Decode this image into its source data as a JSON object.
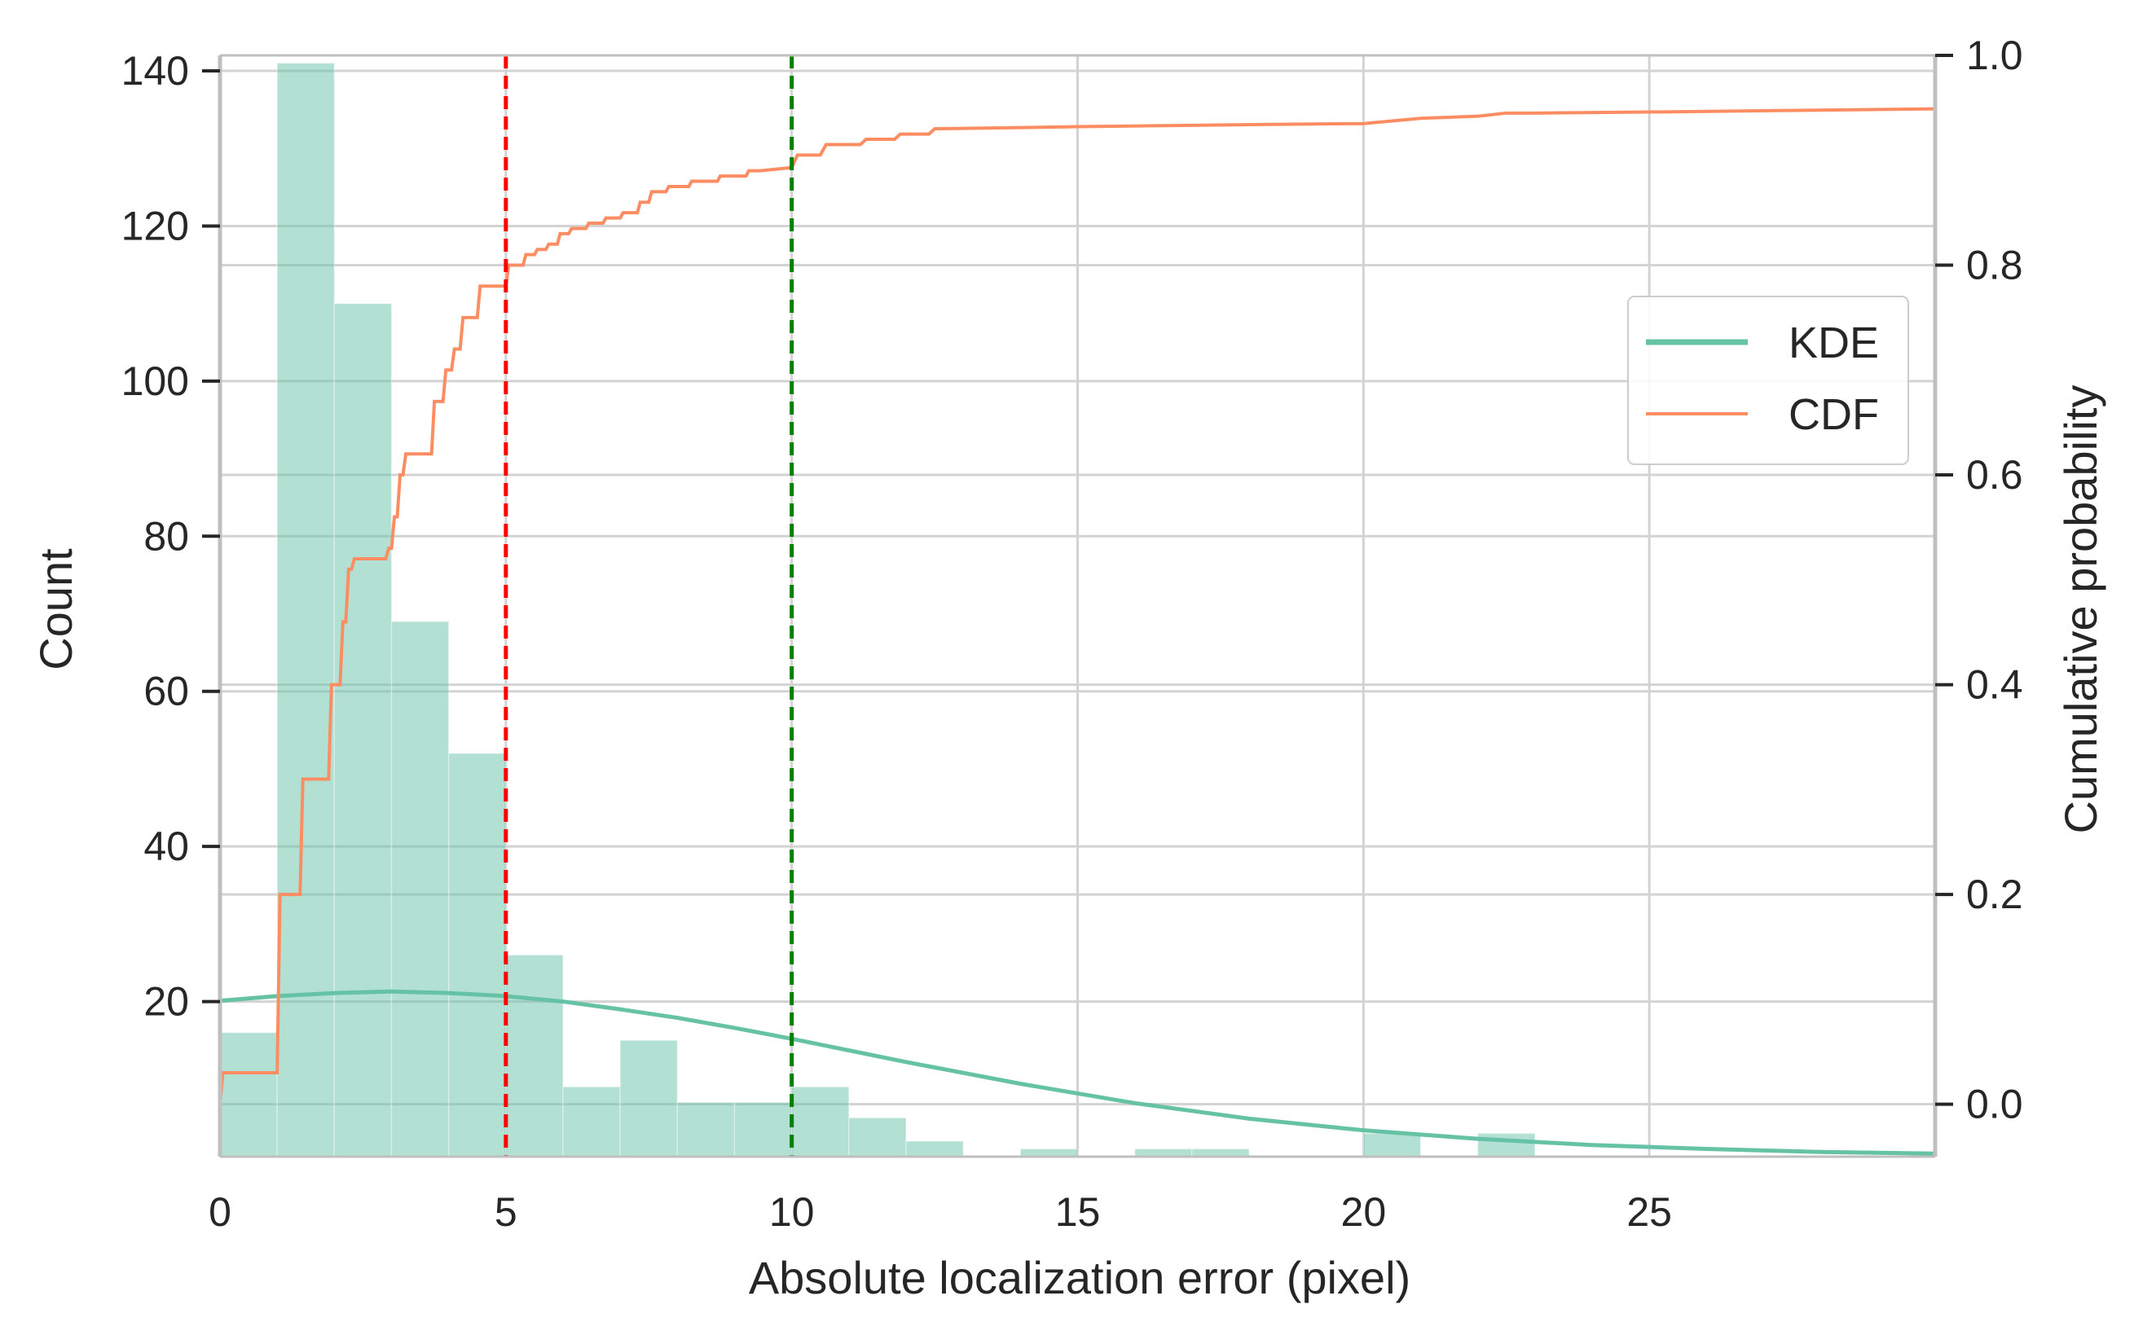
{
  "chart_data": {
    "type": "bar",
    "xlabel": "Absolute localization error (pixel)",
    "ylabel": "Count",
    "y2label": "Cumulative probability",
    "xlim": [
      0,
      30
    ],
    "ylim": [
      0,
      142
    ],
    "y2lim": [
      -0.05,
      1.0
    ],
    "x_ticks": [
      0,
      5,
      10,
      15,
      20,
      25
    ],
    "y_ticks": [
      20,
      40,
      60,
      80,
      100,
      120,
      140
    ],
    "y2_ticks": [
      0.0,
      0.2,
      0.4,
      0.6,
      0.8,
      1.0
    ],
    "grid": true,
    "legend_position": "right",
    "colors": {
      "bars": "#66c2a5",
      "kde": "#66c2a5",
      "cdf": "#fc8d62",
      "vline_5": "#ff0000",
      "vline_10": "#008000",
      "grid": "#d3d3d3",
      "text": "#262626"
    },
    "histogram": {
      "bin_edges": [
        0,
        1,
        2,
        3,
        4,
        5,
        6,
        7,
        8,
        9,
        10,
        11,
        12,
        13,
        14,
        15,
        16,
        17,
        18,
        19,
        20,
        21,
        22,
        23,
        24,
        25,
        26,
        27,
        28,
        29,
        30
      ],
      "counts": [
        16,
        141,
        110,
        69,
        52,
        26,
        9,
        15,
        7,
        7,
        9,
        5,
        2,
        0,
        1,
        0,
        1,
        1,
        0,
        0,
        3,
        0,
        3,
        0,
        0,
        0,
        0,
        0,
        0,
        0
      ]
    },
    "series": [
      {
        "name": "KDE",
        "axis": "left",
        "x": [
          0,
          1,
          2,
          3,
          4,
          5,
          6,
          7,
          8,
          9,
          10,
          12,
          14,
          16,
          18,
          20,
          22,
          24,
          26,
          28,
          30
        ],
        "y": [
          20.1,
          20.7,
          21.1,
          21.3,
          21.1,
          20.7,
          20.0,
          19.0,
          17.9,
          16.6,
          15.2,
          12.2,
          9.4,
          6.9,
          4.9,
          3.4,
          2.3,
          1.5,
          1.0,
          0.6,
          0.4
        ]
      },
      {
        "name": "CDF",
        "axis": "right",
        "x": [
          0,
          0.05,
          1.0,
          1.05,
          1.4,
          1.45,
          1.9,
          1.95,
          2.1,
          2.15,
          2.2,
          2.25,
          2.3,
          2.35,
          2.9,
          2.95,
          3.0,
          3.05,
          3.1,
          3.15,
          3.2,
          3.25,
          3.7,
          3.75,
          3.9,
          3.95,
          4.05,
          4.1,
          4.2,
          4.25,
          4.5,
          4.55,
          5.0,
          5.05,
          5.3,
          5.35,
          5.5,
          5.55,
          5.7,
          5.75,
          5.9,
          5.95,
          6.1,
          6.15,
          6.4,
          6.45,
          6.7,
          6.75,
          7.0,
          7.05,
          7.3,
          7.35,
          7.5,
          7.55,
          7.8,
          7.85,
          8.2,
          8.25,
          8.7,
          8.75,
          9.2,
          9.25,
          9.4,
          9.45,
          10.0,
          10.1,
          10.5,
          10.6,
          11.2,
          11.3,
          11.8,
          11.9,
          12.4,
          12.5,
          15.0,
          18.0,
          20.0,
          21.0,
          22.0,
          22.5,
          23.0,
          25.0,
          30.0
        ],
        "y": [
          0.0,
          0.03,
          0.03,
          0.2,
          0.2,
          0.31,
          0.31,
          0.4,
          0.4,
          0.46,
          0.46,
          0.51,
          0.51,
          0.52,
          0.52,
          0.53,
          0.53,
          0.56,
          0.56,
          0.6,
          0.6,
          0.62,
          0.62,
          0.67,
          0.67,
          0.7,
          0.7,
          0.72,
          0.72,
          0.75,
          0.75,
          0.78,
          0.78,
          0.8,
          0.8,
          0.81,
          0.81,
          0.815,
          0.815,
          0.82,
          0.82,
          0.83,
          0.83,
          0.835,
          0.835,
          0.84,
          0.84,
          0.845,
          0.845,
          0.85,
          0.85,
          0.86,
          0.86,
          0.87,
          0.87,
          0.875,
          0.875,
          0.88,
          0.88,
          0.885,
          0.885,
          0.89,
          0.89,
          0.89,
          0.893,
          0.905,
          0.905,
          0.915,
          0.915,
          0.92,
          0.92,
          0.925,
          0.925,
          0.93,
          0.932,
          0.934,
          0.935,
          0.94,
          0.942,
          0.945,
          0.945,
          0.946,
          0.949
        ]
      }
    ],
    "vlines": [
      {
        "x": 5,
        "color": "#ff0000",
        "style": "dashed"
      },
      {
        "x": 10,
        "color": "#008000",
        "style": "dashed"
      }
    ]
  }
}
